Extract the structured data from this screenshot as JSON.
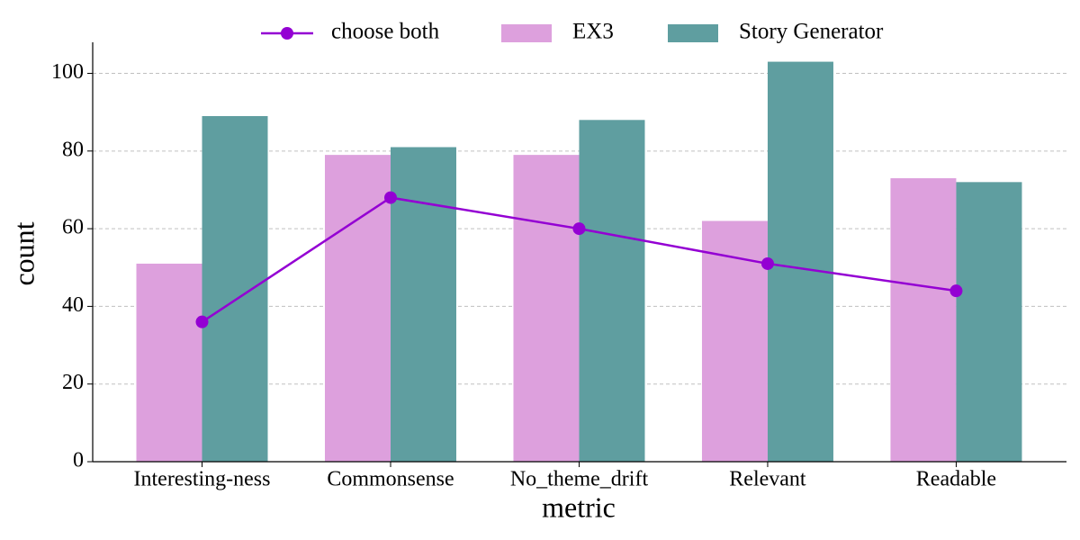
{
  "chart_data": {
    "type": "bar",
    "x_label": "metric",
    "y_label": "count",
    "categories": [
      "Interesting-ness",
      "Commonsense",
      "No_theme_drift",
      "Relevant",
      "Readable"
    ],
    "series": [
      {
        "name": "choose both",
        "type": "line",
        "color": "#9400d3",
        "values": [
          36,
          68,
          60,
          51,
          44
        ]
      },
      {
        "name": "EX3",
        "type": "bar",
        "color": "#dda0dd",
        "values": [
          51,
          79,
          79,
          62,
          73
        ]
      },
      {
        "name": "Story Generator",
        "type": "bar",
        "color": "#5f9ea0",
        "values": [
          89,
          81,
          88,
          103,
          72
        ]
      }
    ],
    "ylim": [
      0,
      108
    ],
    "yticks": [
      0,
      20,
      40,
      60,
      80,
      100
    ],
    "grid": true
  }
}
